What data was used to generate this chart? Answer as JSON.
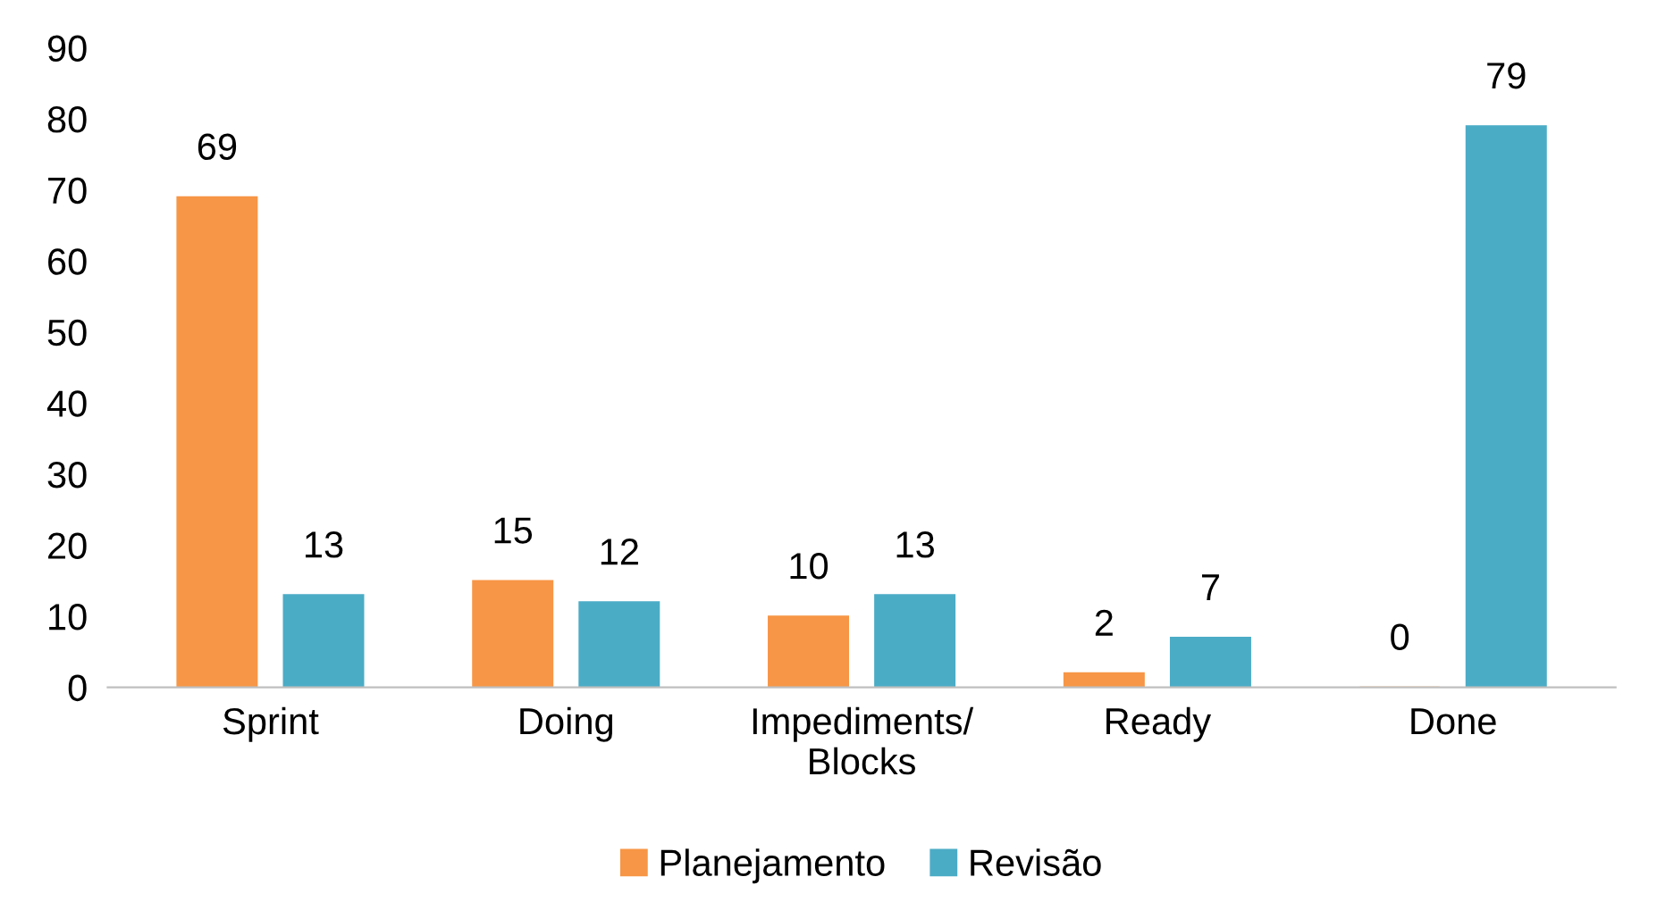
{
  "chart_data": {
    "type": "bar",
    "categories": [
      "Sprint",
      "Doing",
      "Impediments/\nBlocks",
      "Ready",
      "Done"
    ],
    "series": [
      {
        "name": "Planejamento",
        "color": "#f79646",
        "values": [
          69,
          15,
          10,
          2,
          0
        ]
      },
      {
        "name": "Revisão",
        "color": "#4bacc6",
        "values": [
          13,
          12,
          13,
          7,
          79
        ]
      }
    ],
    "ylim": [
      0,
      90
    ],
    "yticks": [
      0,
      10,
      20,
      30,
      40,
      50,
      60,
      70,
      80,
      90
    ],
    "grid": false,
    "legend": "bottom",
    "data_labels": true
  }
}
